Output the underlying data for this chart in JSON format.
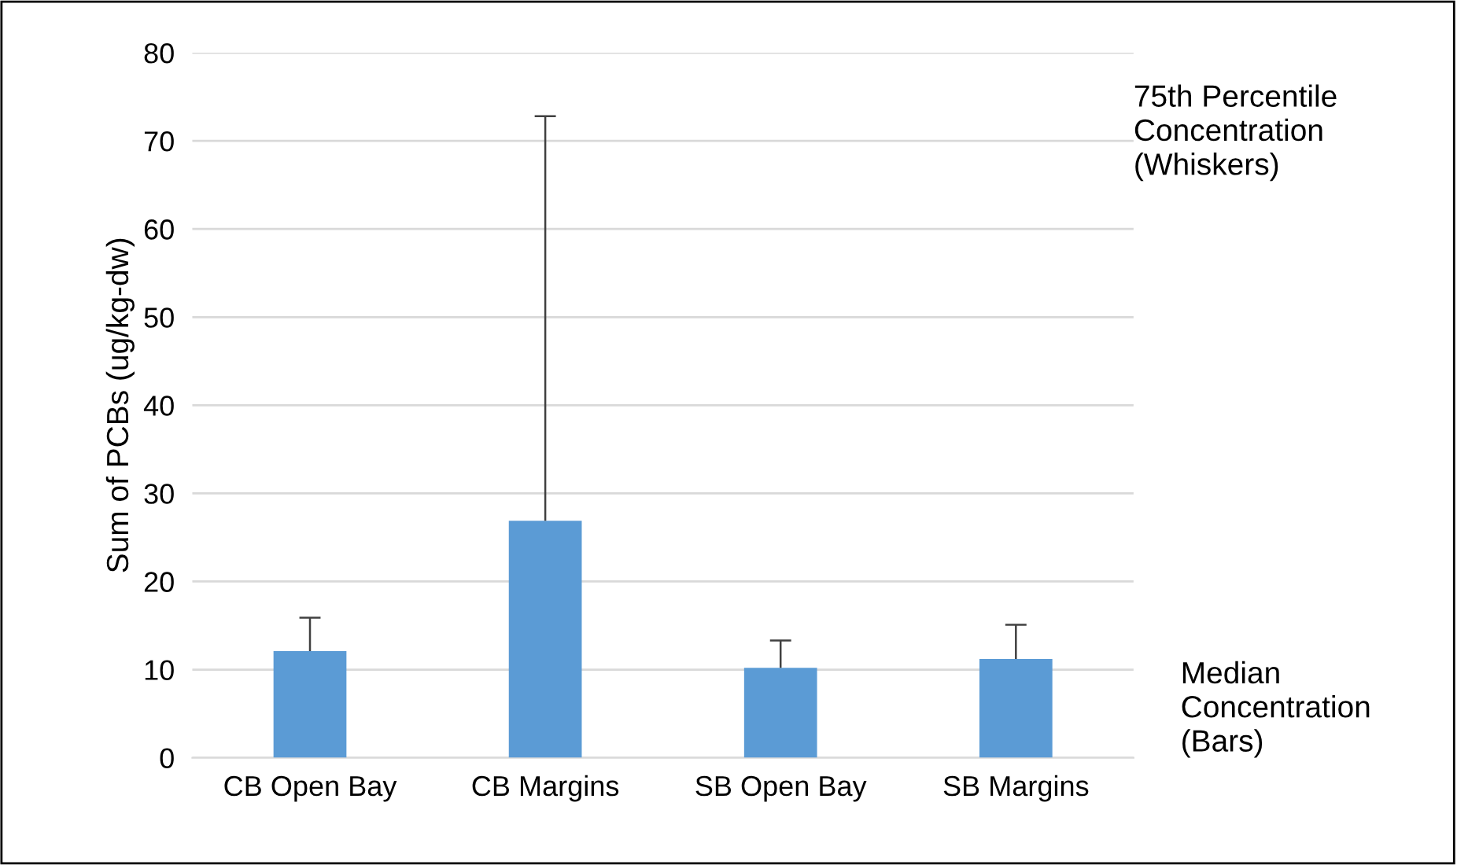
{
  "chart_data": {
    "type": "bar",
    "categories": [
      "CB Open Bay",
      "CB Margins",
      "SB Open Bay",
      "SB Margins"
    ],
    "values": [
      12.1,
      26.9,
      10.2,
      11.2
    ],
    "errors": [
      [
        12.1,
        15.9
      ],
      [
        26.9,
        72.8
      ],
      [
        10.2,
        13.3
      ],
      [
        11.2,
        15.1
      ]
    ],
    "color": "#5b9bd5",
    "ylabel": "Sum of PCBs (ug/kg-dw)",
    "ylim": [
      0,
      80
    ],
    "yticks": [
      0,
      10,
      20,
      30,
      40,
      50,
      60,
      70,
      80
    ],
    "grid": "y",
    "annotations": [
      "75th Percentile\nConcentration\n(Whiskers)",
      "Median\nConcentration\n(Bars)"
    ]
  }
}
